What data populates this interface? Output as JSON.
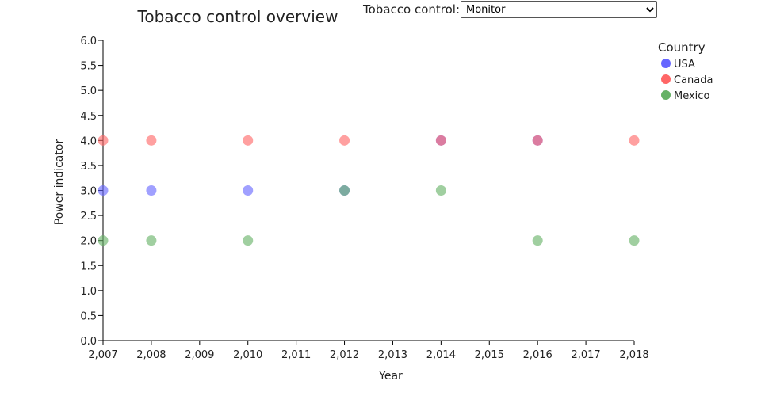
{
  "control": {
    "label": "Tobacco control:",
    "selected": "Monitor",
    "options": [
      "Monitor"
    ]
  },
  "chart_data": {
    "type": "scatter",
    "title": "Tobacco control overview",
    "xlabel": "Year",
    "ylabel": "Power indicator",
    "xlim": [
      2007,
      2018
    ],
    "ylim": [
      0,
      6
    ],
    "x_ticks": [
      "2,007",
      "2,008",
      "2,009",
      "2,010",
      "2,011",
      "2,012",
      "2,013",
      "2,014",
      "2,015",
      "2,016",
      "2,017",
      "2,018"
    ],
    "y_ticks": [
      "0.0",
      "0.5",
      "1.0",
      "1.5",
      "2.0",
      "2.5",
      "3.0",
      "3.5",
      "4.0",
      "4.5",
      "5.0",
      "5.5",
      "6.0"
    ],
    "legend": {
      "title": "Country",
      "position": "top-right"
    },
    "grid": false,
    "series": [
      {
        "name": "USA",
        "color": "#6666ff",
        "points": [
          [
            2007,
            3
          ],
          [
            2008,
            3
          ],
          [
            2010,
            3
          ],
          [
            2012,
            3
          ],
          [
            2014,
            4
          ],
          [
            2016,
            4
          ]
        ]
      },
      {
        "name": "Canada",
        "color": "#ff6666",
        "points": [
          [
            2007,
            4
          ],
          [
            2008,
            4
          ],
          [
            2010,
            4
          ],
          [
            2012,
            4
          ],
          [
            2014,
            4
          ],
          [
            2016,
            4
          ],
          [
            2018,
            4
          ]
        ]
      },
      {
        "name": "Mexico",
        "color": "#66b266",
        "points": [
          [
            2007,
            2
          ],
          [
            2008,
            2
          ],
          [
            2010,
            2
          ],
          [
            2012,
            3
          ],
          [
            2014,
            3
          ],
          [
            2016,
            2
          ],
          [
            2018,
            2
          ]
        ]
      }
    ]
  }
}
